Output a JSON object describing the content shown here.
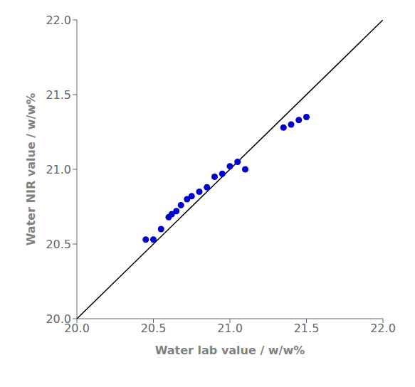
{
  "chart_data": {
    "type": "scatter",
    "xlabel": "Water lab value / w/w%",
    "ylabel": "Water NIR value / w/w%",
    "xlim": [
      20.0,
      22.0
    ],
    "ylim": [
      20.0,
      22.0
    ],
    "xticks": [
      {
        "value": 20.0,
        "label": "20.0"
      },
      20.5,
      {
        "value": 21.0,
        "label": "21.0"
      },
      21.5,
      {
        "value": 22.0,
        "label": "22.0"
      }
    ],
    "yticks": [
      {
        "value": 20.0,
        "label": "20.0"
      },
      20.5,
      {
        "value": 21.0,
        "label": "21.0"
      },
      21.5,
      {
        "value": 22.0,
        "label": "22.0"
      }
    ],
    "grid": false,
    "series": [
      {
        "type": "line",
        "color": "#000000",
        "x": [
          20.0,
          22.0
        ],
        "values": [
          20.0,
          22.0
        ]
      },
      {
        "type": "scatter",
        "color": "#0000CC",
        "marker": "circle",
        "x": [
          20.45,
          20.5,
          20.55,
          20.6,
          20.62,
          20.65,
          20.68,
          20.72,
          20.75,
          20.8,
          20.85,
          20.9,
          20.95,
          21.0,
          21.05,
          21.1,
          21.35,
          21.4,
          21.45,
          21.5
        ],
        "values": [
          20.53,
          20.53,
          20.6,
          20.68,
          20.7,
          20.72,
          20.76,
          20.8,
          20.82,
          20.85,
          20.88,
          20.95,
          20.97,
          21.02,
          21.05,
          21.0,
          21.28,
          21.3,
          21.33,
          21.35
        ]
      }
    ]
  }
}
